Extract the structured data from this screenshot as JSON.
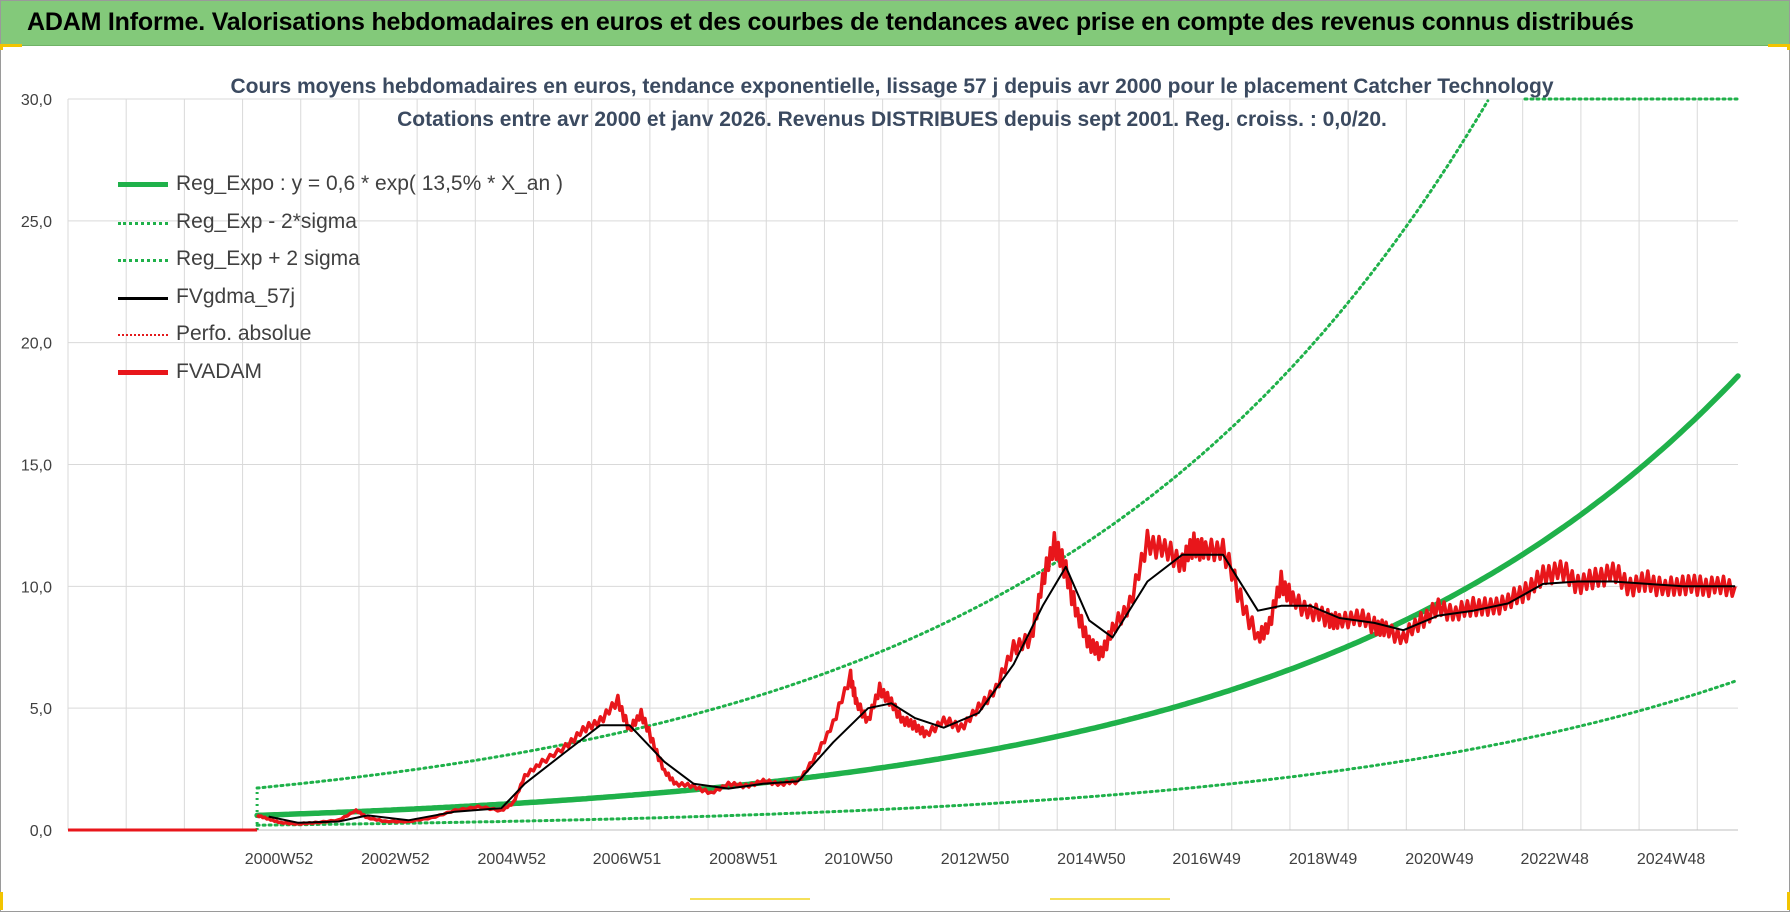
{
  "banner": {
    "title": "ADAM Informe. Valorisations hebdomadaires en euros et des courbes de tendances avec prise en compte des revenus connus distribués"
  },
  "colors": {
    "banner_bg": "#83c97a",
    "reg_expo": "#1fb14a",
    "sigma_bands": "#1fb14a",
    "fvgdma": "#000000",
    "perfo_absolue": "#e31a1c",
    "fvadam": "#e8161b",
    "gridline": "#d9d9d9",
    "corner_marks": "#f2c400"
  },
  "chart_data": {
    "type": "line",
    "title_line1": "Cours moyens hebdomadaires en euros, tendance exponentielle, lissage 57 j depuis avr 2000 pour le placement Catcher Technology",
    "title_line2": "Cotations entre avr 2000 et janv 2026.  Revenus DISTRIBUES depuis sept 2001. Reg. croiss. : 0,0/20.",
    "y_ticks": [
      "30,0",
      "25,0",
      "20,0",
      "15,0",
      "10,0",
      "5,0",
      "0,0"
    ],
    "ylim": [
      0,
      30
    ],
    "x_ticks": [
      "2000W52",
      "2002W52",
      "2004W52",
      "2006W51",
      "2008W51",
      "2010W50",
      "2012W50",
      "2014W50",
      "2016W49",
      "2018W49",
      "2020W49",
      "2022W48",
      "2024W48"
    ],
    "x_range_years": [
      1997.35,
      2026.05
    ],
    "grid": true,
    "legend_position": "top-left",
    "legend": [
      {
        "label": "Reg_Expo : y = 0,6 * exp( 13,5% *  X_an )",
        "style": "solid-thick",
        "color": "#1fb14a"
      },
      {
        "label": "Reg_Exp - 2*sigma",
        "style": "dotted",
        "color": "#1fb14a"
      },
      {
        "label": "Reg_Exp + 2 sigma",
        "style": "dotted",
        "color": "#1fb14a"
      },
      {
        "label": "FVgdma_57j",
        "style": "solid",
        "color": "#000000"
      },
      {
        "label": "Perfo. absolue",
        "style": "dotted",
        "color": "#e31a1c"
      },
      {
        "label": "FVADAM",
        "style": "solid-thick",
        "color": "#e8161b"
      }
    ],
    "regression": {
      "a": 0.6,
      "rate": 0.135,
      "start_year": 2000.6,
      "lower_factor": 0.33,
      "upper_factor": 2.87,
      "upper_cap": 30.0
    },
    "flat_before_start": {
      "from_year": 1997.35,
      "to_year": 2000.6,
      "value": 0
    },
    "fvadam": {
      "x": [
        2000.6,
        2000.8,
        2001.0,
        2001.3,
        2001.6,
        2002.0,
        2002.3,
        2002.5,
        2002.8,
        2003.2,
        2003.6,
        2004.0,
        2004.4,
        2004.8,
        2005.0,
        2005.2,
        2005.5,
        2005.9,
        2006.2,
        2006.5,
        2006.8,
        2007.0,
        2007.2,
        2007.4,
        2007.6,
        2007.8,
        2008.1,
        2008.4,
        2008.7,
        2009.0,
        2009.3,
        2009.6,
        2009.9,
        2010.2,
        2010.5,
        2010.8,
        2010.9,
        2011.1,
        2011.3,
        2011.5,
        2011.7,
        2011.9,
        2012.1,
        2012.4,
        2012.7,
        2013.0,
        2013.3,
        2013.6,
        2013.9,
        2014.1,
        2014.3,
        2014.5,
        2014.7,
        2014.9,
        2015.1,
        2015.3,
        2015.6,
        2015.9,
        2016.2,
        2016.5,
        2016.7,
        2016.9,
        2017.2,
        2017.5,
        2017.8,
        2018.0,
        2018.2,
        2018.4,
        2018.7,
        2019.0,
        2019.2,
        2019.5,
        2019.8,
        2020.0,
        2020.3,
        2020.6,
        2020.9,
        2021.2,
        2021.5,
        2021.8,
        2022.1,
        2022.4,
        2022.7,
        2023.0,
        2023.3,
        2023.6,
        2023.9,
        2024.2,
        2024.5,
        2024.8,
        2025.1,
        2025.4,
        2025.7,
        2026.0
      ],
      "y": [
        0.6,
        0.45,
        0.3,
        0.25,
        0.3,
        0.4,
        0.8,
        0.5,
        0.35,
        0.35,
        0.5,
        0.8,
        0.95,
        0.8,
        1.1,
        2.2,
        2.8,
        3.4,
        4.1,
        4.5,
        5.3,
        4.1,
        4.8,
        3.6,
        2.4,
        1.9,
        1.8,
        1.5,
        1.9,
        1.8,
        2.0,
        1.9,
        2.0,
        3.0,
        4.4,
        6.3,
        5.2,
        4.5,
        5.8,
        5.2,
        4.5,
        4.3,
        3.9,
        4.5,
        4.2,
        5.0,
        5.8,
        7.5,
        7.8,
        10.2,
        11.8,
        10.6,
        8.8,
        7.7,
        7.2,
        8.2,
        9.3,
        11.8,
        11.5,
        11.0,
        11.7,
        11.4,
        11.6,
        9.5,
        7.8,
        8.5,
        10.2,
        9.4,
        9.0,
        8.7,
        8.5,
        8.8,
        8.4,
        8.2,
        7.9,
        8.6,
        9.1,
        8.9,
        9.2,
        9.1,
        9.4,
        9.8,
        10.4,
        10.7,
        10.1,
        10.3,
        10.6,
        10.0,
        10.2,
        9.9,
        10.1,
        10.0,
        10.0,
        10.0
      ]
    },
    "fvgdma_57j": {
      "x": [
        2000.8,
        2001.3,
        2002.0,
        2002.5,
        2003.2,
        2004.0,
        2004.8,
        2005.2,
        2005.9,
        2006.5,
        2007.0,
        2007.6,
        2008.1,
        2008.7,
        2009.3,
        2009.9,
        2010.5,
        2011.1,
        2011.5,
        2011.9,
        2012.4,
        2013.0,
        2013.6,
        2014.1,
        2014.5,
        2014.9,
        2015.3,
        2015.9,
        2016.5,
        2017.2,
        2017.8,
        2018.2,
        2018.7,
        2019.2,
        2019.8,
        2020.3,
        2020.9,
        2021.5,
        2022.1,
        2022.7,
        2023.3,
        2023.9,
        2024.5,
        2025.1,
        2025.7,
        2026.0
      ],
      "y": [
        0.55,
        0.3,
        0.35,
        0.6,
        0.4,
        0.75,
        0.9,
        1.9,
        3.2,
        4.3,
        4.3,
        2.8,
        1.9,
        1.7,
        1.9,
        2.0,
        3.6,
        5.0,
        5.2,
        4.6,
        4.2,
        4.8,
        6.8,
        9.2,
        10.8,
        8.6,
        7.9,
        10.2,
        11.3,
        11.3,
        9.0,
        9.2,
        9.2,
        8.7,
        8.5,
        8.2,
        8.8,
        9.0,
        9.3,
        10.1,
        10.2,
        10.2,
        10.1,
        10.0,
        10.0,
        10.0
      ]
    }
  }
}
